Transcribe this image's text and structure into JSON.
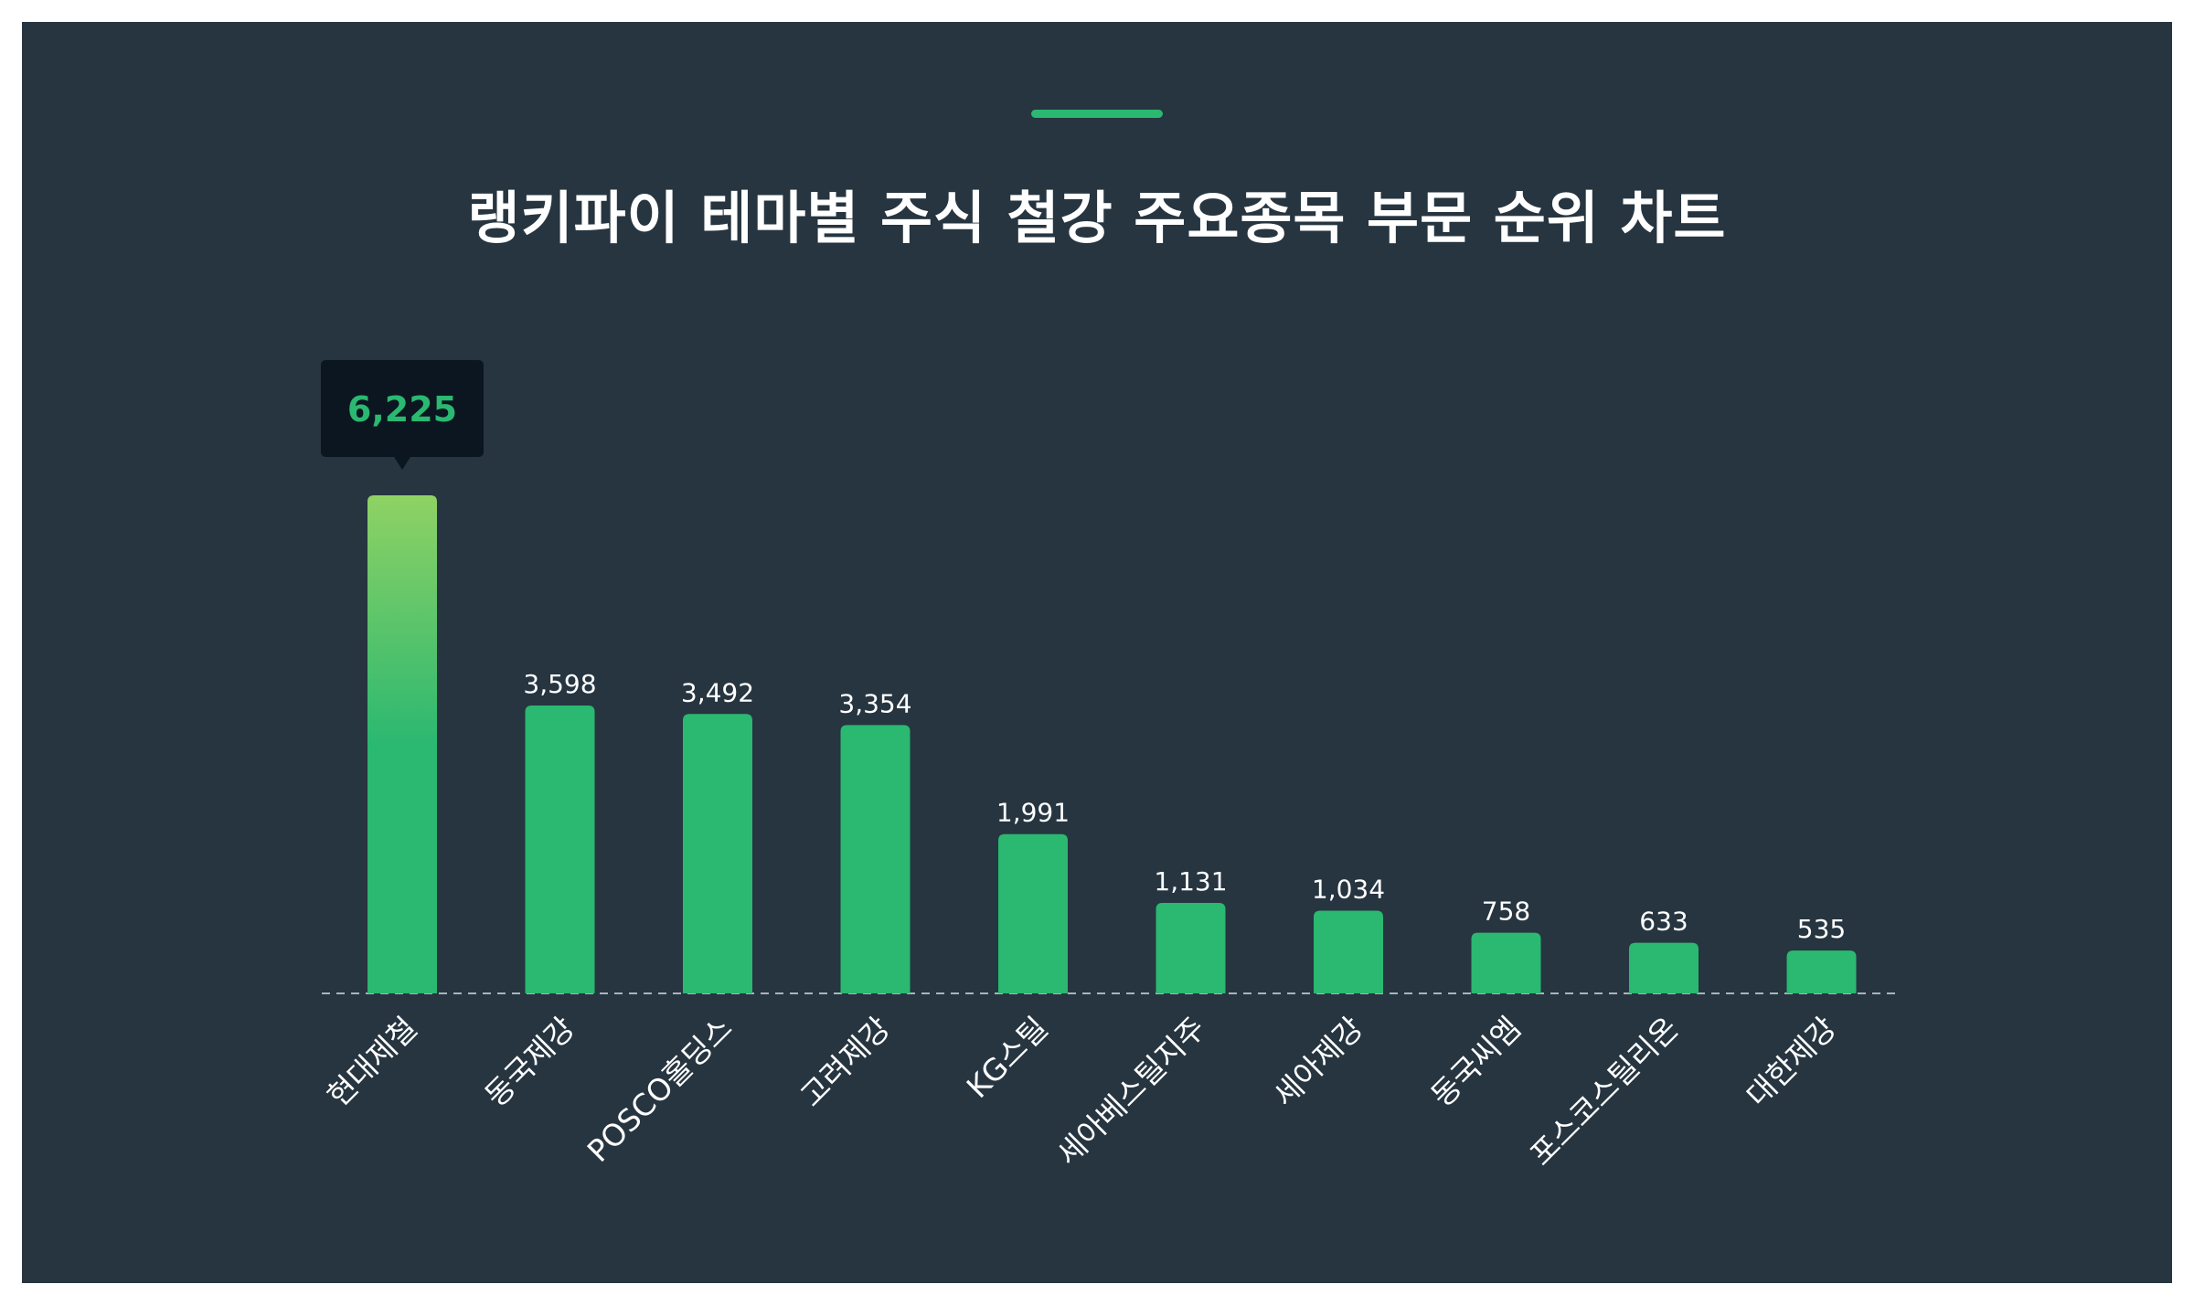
{
  "chart_data": {
    "type": "bar",
    "title": "랭키파이 테마별 주식 철강 주요종목 부문 순위 차트",
    "categories": [
      "현대제철",
      "동국제강",
      "POSCO홀딩스",
      "고려제강",
      "KG스틸",
      "세아베스틸지주",
      "세아제강",
      "동국씨엠",
      "포스코스틸리온",
      "대한제강"
    ],
    "values": [
      6225,
      3598,
      3492,
      3354,
      1991,
      1131,
      1034,
      758,
      633,
      535
    ],
    "value_labels": [
      "6,225",
      "3,598",
      "3,492",
      "3,354",
      "1,991",
      "1,131",
      "1,034",
      "758",
      "633",
      "535"
    ],
    "highlight_index": 0,
    "xlabel": "",
    "ylabel": "",
    "ylim": [
      0,
      6225
    ],
    "grid": false,
    "legend": "none",
    "colors": {
      "background": "#263540",
      "bar": "#2bb871",
      "bar_highlight_top": "#8fd264",
      "tooltip_bg": "#0b1620",
      "tooltip_text": "#2bb871",
      "baseline": "#aab4bb",
      "accent": "#2bb871"
    }
  }
}
